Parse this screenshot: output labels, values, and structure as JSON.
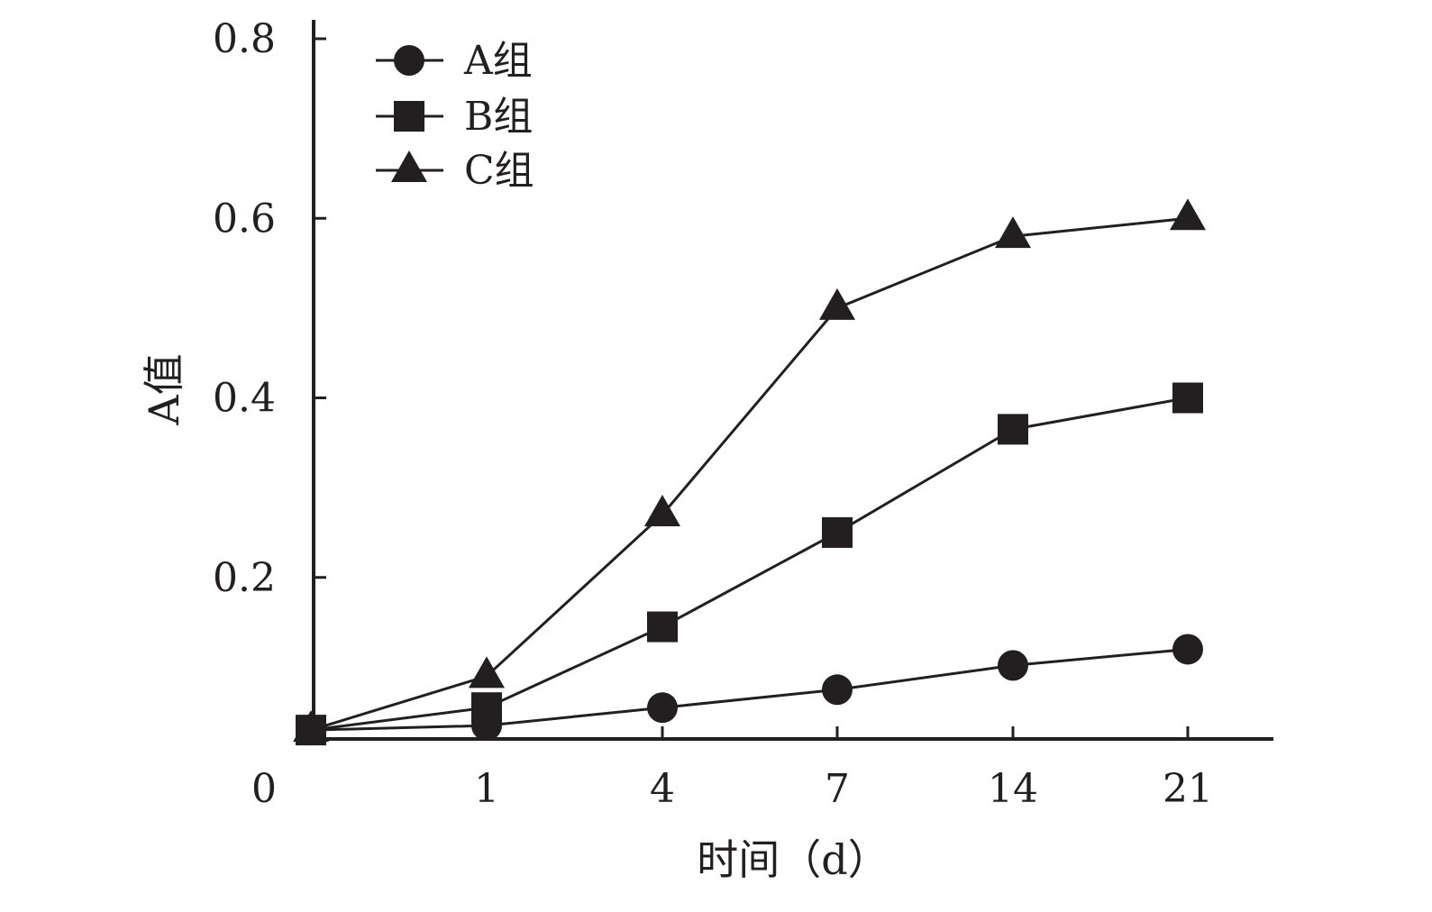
{
  "chart_data": {
    "type": "line",
    "x_labels": [
      "0",
      "1",
      "4",
      "7",
      "14",
      "21"
    ],
    "xlabel": "时间（d）",
    "ylabel": "A值",
    "ylim": [
      0,
      0.8
    ],
    "yticks": [
      0.2,
      0.4,
      0.6,
      0.8
    ],
    "ytick_labels": [
      "0.2",
      "0.4",
      "0.6",
      "0.8"
    ],
    "origin_label": "0",
    "series": [
      {
        "name": "A组",
        "marker": "circle",
        "values": [
          0.03,
          0.035,
          0.055,
          0.075,
          0.102,
          0.12
        ]
      },
      {
        "name": "B组",
        "marker": "square",
        "values": [
          0.03,
          0.055,
          0.145,
          0.25,
          0.365,
          0.4
        ]
      },
      {
        "name": "C组",
        "marker": "triangle",
        "values": [
          0.03,
          0.09,
          0.27,
          0.5,
          0.58,
          0.6
        ]
      }
    ],
    "legend_position": "top-left",
    "grid": false,
    "colors": {
      "ink": "#231f20",
      "background": "#ffffff"
    }
  }
}
